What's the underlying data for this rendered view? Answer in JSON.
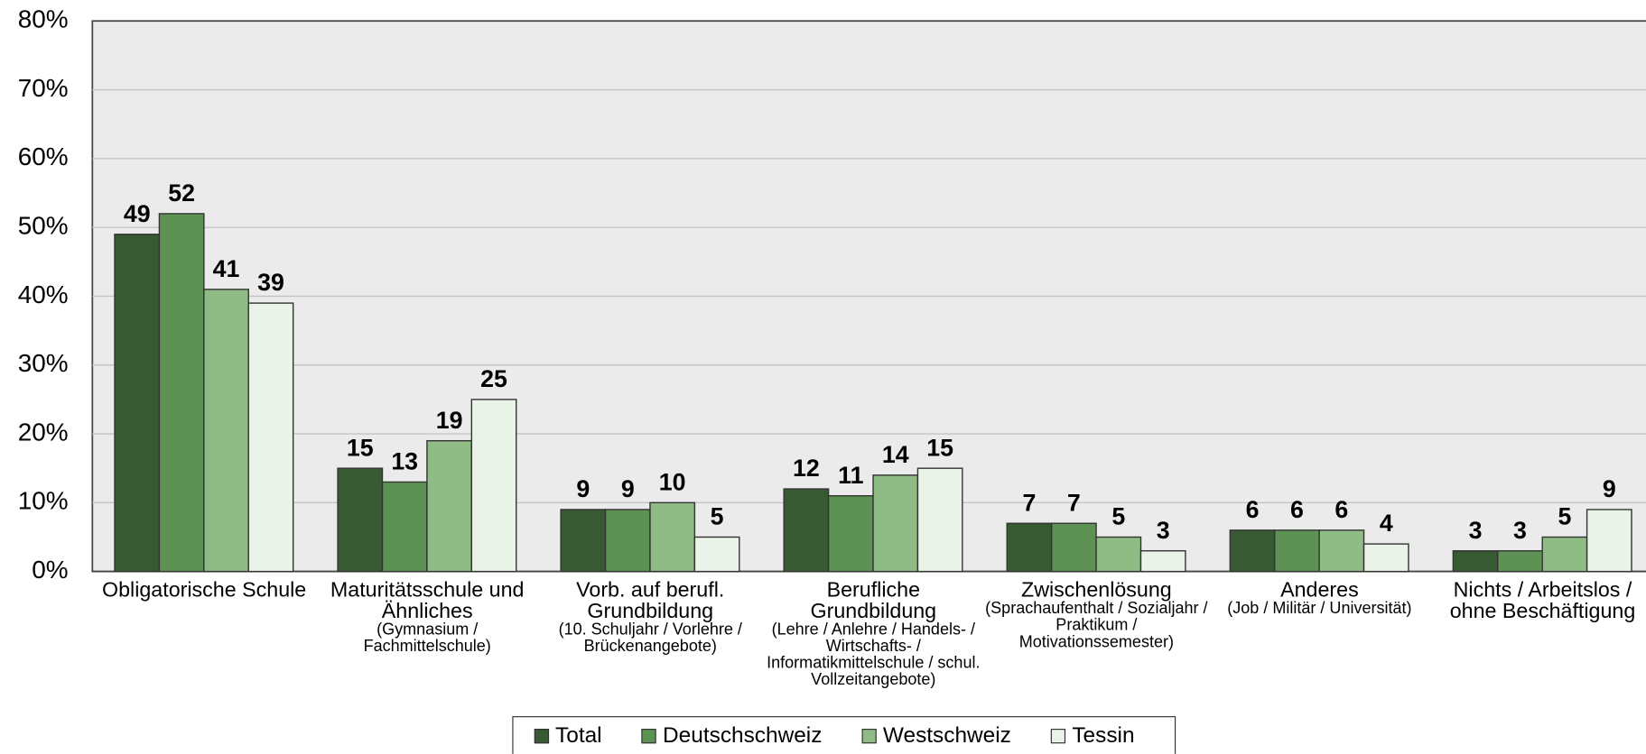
{
  "chart_data": {
    "type": "bar",
    "categories": [
      "Obligatorische Schule",
      "Maturitätsschule und Ähnliches",
      "Vorb. auf berufl. Grundbildung",
      "Berufliche Grundbildung",
      "Zwischenlösung",
      "Anderes",
      "Nichts / Arbeitslos / ohne Beschäftigung"
    ],
    "category_details": [
      null,
      "(Gymnasium / Fachmittelschule)",
      "(10. Schuljahr / Vorlehre / Brückenangebote)",
      "(Lehre / Anlehre / Handels- / Wirtschafts- / Informatikmittelschule / schul. Vollzeitangebote)",
      "(Sprachaufenthalt / Sozialjahr / Praktikum / Motivationssemester)",
      "(Job / Militär / Universität)",
      null
    ],
    "series": [
      {
        "name": "Total",
        "color": "#385a33",
        "values": [
          49,
          15,
          9,
          12,
          7,
          6,
          3
        ]
      },
      {
        "name": "Deutschschweiz",
        "color": "#5e9255",
        "values": [
          52,
          13,
          9,
          11,
          7,
          6,
          3
        ]
      },
      {
        "name": "Westschweiz",
        "color": "#8fbb85",
        "values": [
          41,
          19,
          10,
          14,
          5,
          6,
          5
        ]
      },
      {
        "name": "Tessin",
        "color": "#eaf3e8",
        "values": [
          39,
          25,
          5,
          15,
          3,
          4,
          9
        ]
      }
    ],
    "ylim": [
      0,
      80
    ],
    "yticks": [
      {
        "value": 0,
        "label": "0%"
      },
      {
        "value": 10,
        "label": "10%"
      },
      {
        "value": 20,
        "label": "20%"
      },
      {
        "value": 30,
        "label": "30%"
      },
      {
        "value": 40,
        "label": "40%"
      },
      {
        "value": 50,
        "label": "50%"
      },
      {
        "value": 60,
        "label": "60%"
      },
      {
        "value": 70,
        "label": "70%"
      },
      {
        "value": 80,
        "label": "80%"
      }
    ],
    "grid": true
  }
}
